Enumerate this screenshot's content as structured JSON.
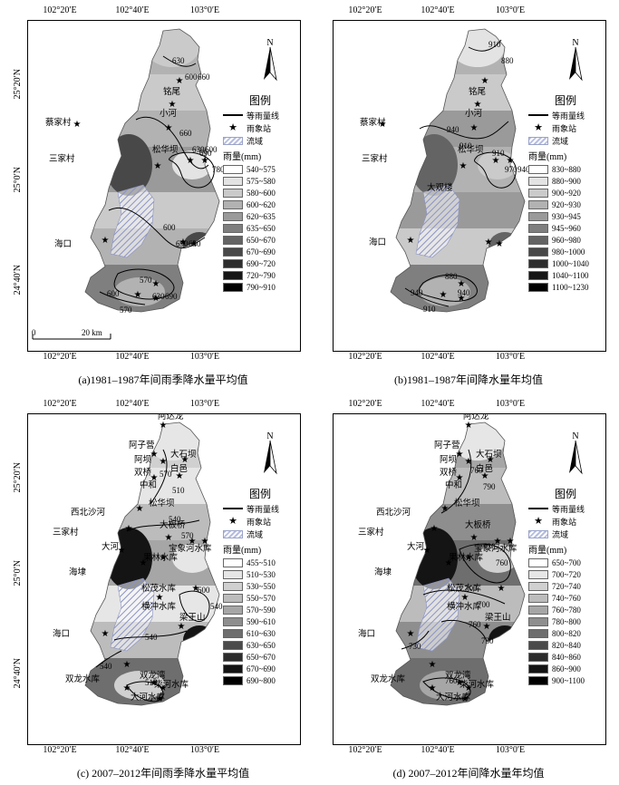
{
  "panels": [
    {
      "caption": "(a)1981–1987年间雨季降水量平均值",
      "coords_top": [
        "102°20′E",
        "102°40′E",
        "103°0′E"
      ],
      "coords_bottom": [
        "102°20′E",
        "102°40′E",
        "103°0′E"
      ],
      "coords_left": [
        "25°20′N",
        "25°0′N",
        "24°40′N"
      ],
      "coords_right": [
        "25°20′N",
        "25°0′N",
        "24°40′N"
      ],
      "north": "N",
      "legend_title": "图例",
      "legend_line": "等雨量线",
      "legend_star": "雨象站",
      "legend_basin": "流域",
      "legend_unit": "雨量(mm)",
      "classes": [
        "540~575",
        "575~580",
        "580~600",
        "600~620",
        "620~635",
        "635~650",
        "650~670",
        "670~690",
        "690~720",
        "720~790",
        "790~910"
      ],
      "class_colors": [
        "#ffffff",
        "#e3e3e3",
        "#cacaca",
        "#b2b2b2",
        "#9a9a9a",
        "#7f7f7f",
        "#646464",
        "#484848",
        "#2d2d2d",
        "#161616",
        "#000000"
      ],
      "scale_zero": "0",
      "scale_label": "20 km",
      "places": [
        "蔡家村",
        "三家村",
        "海口",
        "铭尾",
        "小河",
        "松华坝"
      ],
      "contours": [
        "660",
        "690",
        "600",
        "570",
        "630",
        "600",
        "630",
        "780",
        "690",
        "630",
        "600",
        "570",
        "600",
        "630",
        "630",
        "690",
        "660"
      ]
    },
    {
      "caption": "(b)1981–1987年间降水量年均值",
      "coords_top": [
        "102°20′E",
        "102°40′E",
        "103°0′E"
      ],
      "coords_bottom": [
        "102°20′E",
        "102°40′E",
        "103°0′E"
      ],
      "coords_left": [],
      "coords_right": [
        "25°20′N",
        "25°0′N",
        "24°40′N"
      ],
      "north": "N",
      "legend_title": "图例",
      "legend_line": "等雨量线",
      "legend_star": "雨象站",
      "legend_basin": "流域",
      "legend_unit": "雨量(mm)",
      "classes": [
        "830~880",
        "880~900",
        "900~920",
        "920~930",
        "930~945",
        "945~960",
        "960~980",
        "980~1000",
        "1000~1040",
        "1040~1100",
        "1100~1230"
      ],
      "class_colors": [
        "#ffffff",
        "#e3e3e3",
        "#cacaca",
        "#b2b2b2",
        "#9a9a9a",
        "#7f7f7f",
        "#646464",
        "#484848",
        "#2d2d2d",
        "#161616",
        "#000000"
      ],
      "places": [
        "蔡家村",
        "三家村",
        "海口",
        "铭尾",
        "小河",
        "松华坝",
        "大观楼"
      ],
      "contours": [
        "910",
        "940",
        "880",
        "910",
        "940",
        "970",
        "910",
        "940",
        "880",
        "910",
        "940"
      ]
    },
    {
      "caption": "(c) 2007–2012年间雨季降水量平均值",
      "coords_top": [
        "102°20′E",
        "102°40′E",
        "103°0′E"
      ],
      "coords_bottom": [
        "102°20′E",
        "102°40′E",
        "103°0′E"
      ],
      "coords_left": [
        "25°20′N",
        "25°0′N",
        "24°40′N"
      ],
      "coords_right": [],
      "north": "N",
      "legend_title": "图例",
      "legend_line": "等雨量线",
      "legend_star": "雨象站",
      "legend_basin": "流域",
      "legend_unit": "雨量(mm)",
      "classes": [
        "455~510",
        "510~530",
        "530~550",
        "550~570",
        "570~590",
        "590~610",
        "610~630",
        "630~650",
        "650~670",
        "670~690",
        "690~800"
      ],
      "class_colors": [
        "#ffffff",
        "#e6e6e6",
        "#d0d0d0",
        "#bcbcbc",
        "#a6a6a6",
        "#8e8e8e",
        "#6e6e6e",
        "#4a4a4a",
        "#2c2c2c",
        "#141414",
        "#000000"
      ],
      "places": [
        "阿达龙",
        "阿子营",
        "大石坝",
        "阿坝",
        "白邑",
        "双桥",
        "中和",
        "松华坝",
        "西北沙河",
        "大板桥",
        "三家村",
        "宝象河水库",
        "大河",
        "果林水库",
        "海埭",
        "松茂水库",
        "横冲水库",
        "海口",
        "梁王山",
        "双龙湾",
        "双龙水库",
        "柴河水库",
        "大河水库"
      ],
      "contours": [
        "570",
        "540",
        "600",
        "540",
        "510",
        "540",
        "510",
        "570",
        "540"
      ]
    },
    {
      "caption": "(d) 2007–2012年间降水量年均值",
      "coords_top": [
        "102°20′E",
        "102°40′E",
        "103°0′E"
      ],
      "coords_bottom": [
        "102°20′E",
        "102°40′E",
        "103°0′E"
      ],
      "coords_left": [],
      "coords_right": [
        "25°20′N",
        "25°0′N",
        "24°40′N"
      ],
      "north": "N",
      "legend_title": "图例",
      "legend_line": "等雨量线",
      "legend_star": "雨象站",
      "legend_basin": "流域",
      "legend_unit": "雨量(mm)",
      "classes": [
        "650~700",
        "700~720",
        "720~740",
        "740~760",
        "760~780",
        "780~800",
        "800~820",
        "820~840",
        "840~860",
        "860~900",
        "900~1100"
      ],
      "class_colors": [
        "#ffffff",
        "#e6e6e6",
        "#d0d0d0",
        "#bcbcbc",
        "#a6a6a6",
        "#8e8e8e",
        "#6e6e6e",
        "#4a4a4a",
        "#2c2c2c",
        "#141414",
        "#000000"
      ],
      "places": [
        "阿达龙",
        "阿子营",
        "大石坝",
        "阿坝",
        "白邑",
        "双桥",
        "中和",
        "松华坝",
        "西北沙河",
        "大板桥",
        "三家村",
        "宝象河水库",
        "大河",
        "果林水库",
        "海埭",
        "松茂水库",
        "横冲水库",
        "海口",
        "梁王山",
        "双龙湾",
        "双龙水库",
        "柴河水库",
        "大河水库"
      ],
      "contours": [
        "760",
        "730",
        "700",
        "760",
        "760",
        "730",
        "790",
        "760",
        "700",
        "730"
      ]
    }
  ]
}
